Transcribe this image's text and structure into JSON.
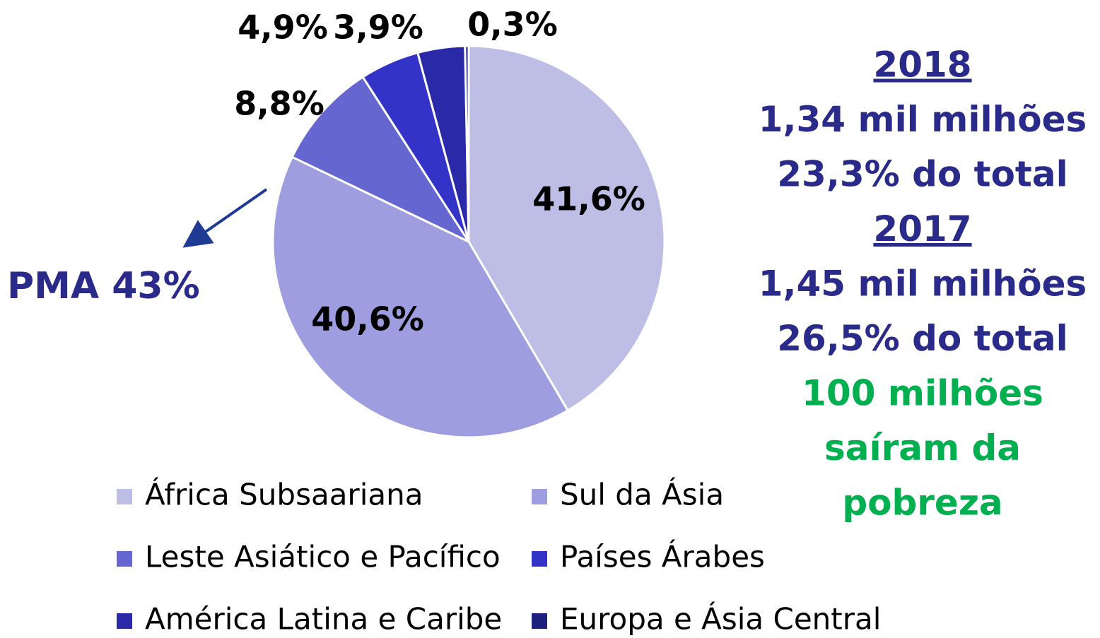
{
  "chart_data": {
    "type": "pie",
    "categories": [
      "África Subsaariana",
      "Sul da Ásia",
      "Leste Asiático e Pacífico",
      "Países Árabes",
      "América Latina e Caribe",
      "Europa e Ásia Central"
    ],
    "values": [
      41.6,
      40.6,
      8.8,
      4.9,
      3.9,
      0.3
    ],
    "value_labels": [
      "41,6%",
      "40,6%",
      "8,8%",
      "4,9%",
      "3,9%",
      "0,3%"
    ],
    "colors": [
      "#bdbde6",
      "#9d9ddf",
      "#6666d0",
      "#3333c8",
      "#2a2aa8",
      "#1f1f80"
    ],
    "annotations": [
      "PMA 43%"
    ],
    "side_text": [
      "2018",
      "1,34 mil milhões",
      "23,3% do total",
      "2017",
      "1,45 mil milhões",
      "26,5% do total",
      "100 milhões",
      "saíram da",
      "pobreza"
    ]
  }
}
